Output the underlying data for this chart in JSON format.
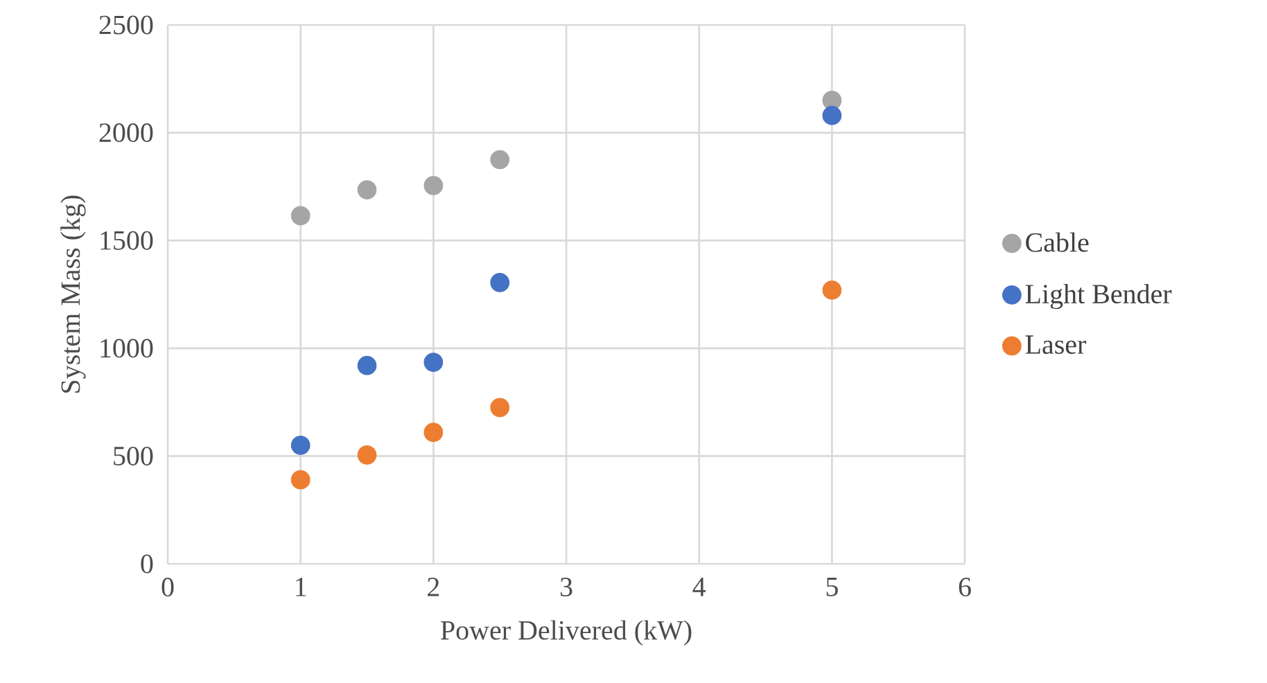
{
  "chart_data": {
    "type": "scatter",
    "xlabel": "Power Delivered (kW)",
    "ylabel": "System Mass (kg)",
    "x": [
      1,
      1.5,
      2,
      2.5,
      5
    ],
    "series": [
      {
        "name": "Cable",
        "color": "#a5a5a5",
        "values": [
          1615,
          1735,
          1755,
          1875,
          2150
        ]
      },
      {
        "name": "Light Bender",
        "color": "#4472c4",
        "values": [
          550,
          920,
          935,
          1305,
          2080
        ]
      },
      {
        "name": "Laser",
        "color": "#ed7d31",
        "values": [
          390,
          505,
          610,
          725,
          1270
        ]
      }
    ],
    "xlim": [
      0,
      6
    ],
    "xticks": [
      0,
      1,
      2,
      3,
      4,
      5,
      6
    ],
    "ylim": [
      0,
      2500
    ],
    "yticks": [
      0,
      500,
      1000,
      1500,
      2000,
      2500
    ],
    "grid": true,
    "legend": "right",
    "marker": "circle"
  }
}
